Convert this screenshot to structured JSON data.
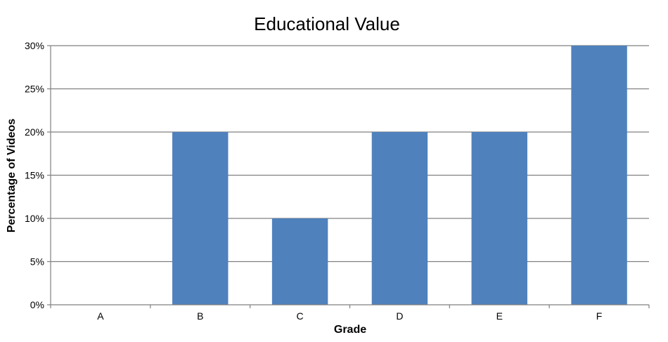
{
  "chart_data": {
    "type": "bar",
    "title": "Educational Value",
    "xlabel": "Grade",
    "ylabel": "Percentage of Videos",
    "categories": [
      "A",
      "B",
      "C",
      "D",
      "E",
      "F"
    ],
    "values": [
      0,
      20,
      10,
      20,
      20,
      30
    ],
    "value_format": "percent",
    "ylim": [
      0,
      30
    ],
    "yticks": [
      0,
      5,
      10,
      15,
      20,
      25,
      30
    ],
    "ytick_labels": [
      "0%",
      "5%",
      "10%",
      "15%",
      "20%",
      "25%",
      "30%"
    ],
    "grid": true,
    "legend": "none",
    "bar_color": "#4f81bd",
    "grid_color": "#808080"
  }
}
